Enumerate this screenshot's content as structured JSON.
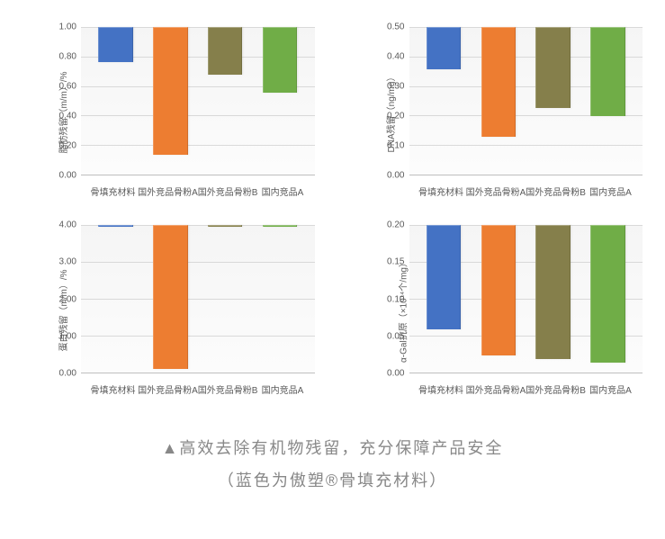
{
  "caption": {
    "line1": "▲高效去除有机物残留，充分保障产品安全",
    "line2": "（蓝色为傲塑®骨填充材料）"
  },
  "categories": [
    "骨填充材料",
    "国外竞品骨粉A",
    "国外竞品骨粉B",
    "国内竞品A"
  ],
  "bar_colors": [
    "#4472c4",
    "#ed7d31",
    "#857f4b",
    "#70ad47"
  ],
  "grid_color": "#d9d9d9",
  "plot_bg": "#f7f7f7",
  "charts": [
    {
      "ylabel": "脂肪残留（m/m）/%",
      "ymax": 1.0,
      "ystep": 0.2,
      "decimals": 2,
      "values": [
        0.23,
        0.86,
        0.32,
        0.44
      ]
    },
    {
      "ylabel": "DNA残留（ng/mg）",
      "ymax": 0.5,
      "ystep": 0.1,
      "decimals": 2,
      "values": [
        0.14,
        0.37,
        0.27,
        0.3
      ]
    },
    {
      "ylabel": "蛋白残留（m/m）/%",
      "ymax": 4.0,
      "ystep": 1.0,
      "decimals": 2,
      "values": [
        0.02,
        3.87,
        0.02,
        0.02
      ]
    },
    {
      "ylabel": "α-Gal抗原（×10¹⁴个/mg）",
      "ymax": 0.2,
      "ystep": 0.05,
      "decimals": 2,
      "values": [
        0.14,
        0.175,
        0.18,
        0.185
      ]
    }
  ]
}
